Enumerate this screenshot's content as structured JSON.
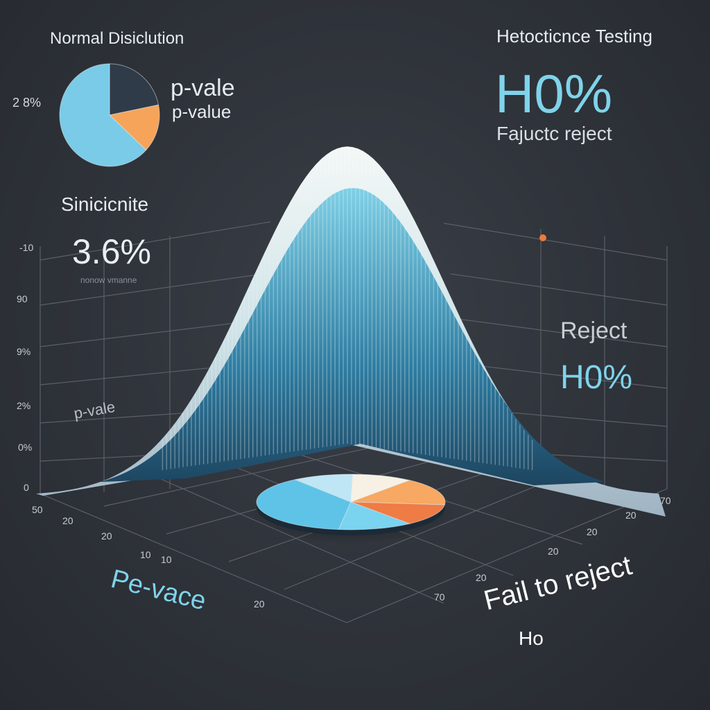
{
  "chart_data": {
    "type": "area",
    "title": "",
    "y_ticks": [
      "-10",
      "90",
      "9%",
      "2%",
      "0%",
      "0"
    ],
    "x_ticks_left": [
      "20",
      "20",
      "10",
      "10",
      "20"
    ],
    "x_ticks_right": [
      "70",
      "20",
      "20",
      "20",
      "20",
      "70"
    ],
    "origin_tick": "50",
    "axis_label_left": "Pе-vace",
    "axis_label_left_inner": "p-vale",
    "axis_label_right": "Fail to reject",
    "axis_label_right_sub": "Ho",
    "curve": {
      "shape": "normal",
      "mean": 0,
      "sd": 1,
      "peak": 0.4
    },
    "base_pie": {
      "type": "pie",
      "colors": [
        "#bfe6f4",
        "#f7f1e5",
        "#f7a862",
        "#ef7b45",
        "#7ad3ef",
        "#5fc3e8"
      ]
    }
  },
  "colors": {
    "accent": "#7fd3ea",
    "orange": "#f58a47",
    "text": "#dfe5ea",
    "grid": "#5b6068"
  },
  "top_left": {
    "title": "Normal Disiclution",
    "side_value": "2 8%",
    "pie_label_1": "p-vale",
    "pie_label_2": "p-value",
    "pie_colors": [
      "#2f3b48",
      "#f5a45a",
      "#79cbe8"
    ]
  },
  "top_right": {
    "title": "Hetocticnce Testing",
    "big_value": "H0%",
    "caption": "Fajuctc reject"
  },
  "left_stat": {
    "label": "Sinicicnite",
    "value": "3.6%",
    "sub": "nonow vmanne"
  },
  "right_stat": {
    "label": "Reject",
    "value": "H0%"
  }
}
